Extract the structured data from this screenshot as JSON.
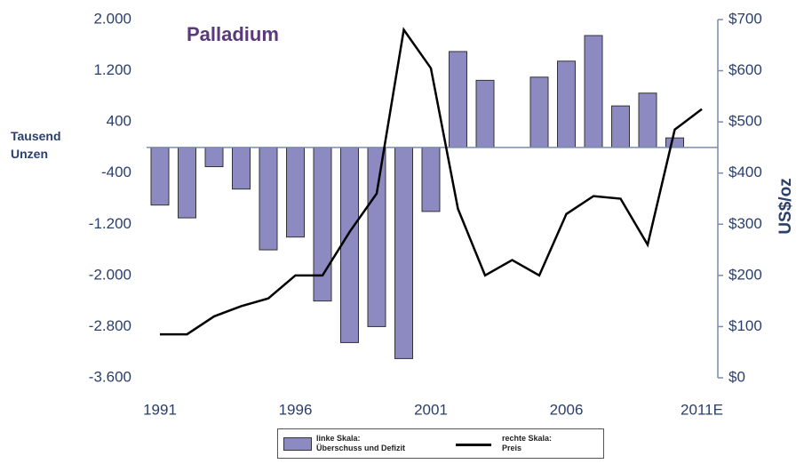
{
  "chart_data": {
    "type": "bar_line",
    "title": "Palladium",
    "y_label": "Tausend\nUnzen",
    "y2_label": "US$/oz",
    "categories": [
      "1991",
      null,
      null,
      null,
      null,
      "1996",
      null,
      null,
      null,
      null,
      "2001",
      null,
      null,
      null,
      null,
      "2006",
      null,
      null,
      null,
      null,
      "2011E"
    ],
    "series": [
      {
        "name": "linke Skala:\nÜberschuss und Defizit",
        "type": "bar",
        "axis": "y",
        "color": "#8c8ac0",
        "values": [
          -900,
          -1100,
          -300,
          -650,
          -1600,
          -1400,
          -2400,
          -3050,
          -2800,
          -3300,
          -1000,
          1500,
          1050,
          null,
          1100,
          1350,
          1750,
          650,
          850,
          150,
          null
        ]
      },
      {
        "name": "rechte Skala:\nPreis",
        "type": "line",
        "axis": "y2",
        "color": "#000000",
        "values": [
          85,
          85,
          120,
          140,
          155,
          200,
          200,
          285,
          360,
          680,
          605,
          330,
          200,
          230,
          200,
          320,
          355,
          350,
          260,
          485,
          525
        ]
      }
    ],
    "ylim": [
      -3600,
      2000
    ],
    "yticks": [
      {
        "value": -3600,
        "label": "-3.600"
      },
      {
        "value": -2800,
        "label": "-2.800"
      },
      {
        "value": -2000,
        "label": "-2.000"
      },
      {
        "value": -1200,
        "label": "-1.200"
      },
      -400,
      400,
      {
        "value": 1200,
        "label": "1.200"
      },
      {
        "value": 2000,
        "label": "2.000"
      }
    ],
    "y2lim": [
      0,
      700
    ],
    "y2ticks": [
      {
        "value": 0,
        "label": "$0"
      },
      {
        "value": 100,
        "label": "$100"
      },
      {
        "value": 200,
        "label": "$200"
      },
      {
        "value": 300,
        "label": "$300"
      },
      {
        "value": 400,
        "label": "$400"
      },
      {
        "value": 500,
        "label": "$500"
      },
      {
        "value": 600,
        "label": "$600"
      },
      {
        "value": 700,
        "label": "$700"
      }
    ],
    "grid": false,
    "legend": "bottom"
  }
}
